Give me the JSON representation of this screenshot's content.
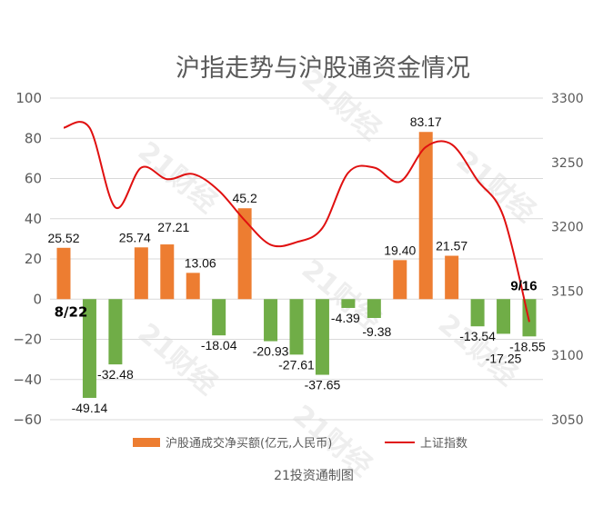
{
  "chart_data": {
    "type": "bar+line",
    "title": "沪指走势与沪股通资金情况",
    "source": "21投资通制图",
    "watermark": "21财经",
    "colors": {
      "bar_pos": "#ED7D31",
      "bar_neg": "#70AD47",
      "line": "#E01010",
      "grid": "#D9D9D9",
      "axis_text": "#595959"
    },
    "left_axis": {
      "ylim": [
        -60,
        100
      ],
      "ticks": [
        100,
        80,
        60,
        40,
        20,
        0,
        -20,
        -40,
        -60
      ]
    },
    "right_axis": {
      "ylim": [
        3050,
        3300
      ],
      "ticks": [
        3300,
        3250,
        3200,
        3150,
        3100,
        3050
      ]
    },
    "first_label": "8/22",
    "last_label": "9/16",
    "series": [
      {
        "name": "沪股通成交净买额(亿元,人民币)",
        "type": "bar",
        "axis": "left",
        "values": [
          25.52,
          -49.14,
          -32.48,
          25.74,
          27.21,
          13.06,
          -18.04,
          45.2,
          -20.93,
          -27.61,
          -37.65,
          -4.39,
          -9.38,
          19.4,
          83.17,
          21.57,
          -13.54,
          -17.25,
          -18.55
        ],
        "labels": [
          "25.52",
          "-49.14",
          "-32.48",
          "25.74",
          "27.21",
          "13.06",
          "-18.04",
          "45.2",
          "-20.93",
          "-27.61",
          "-37.65",
          "-4.39",
          "-9.38",
          "19.40",
          "83.17",
          "21.57",
          "-13.54",
          "-17.25",
          "-18.55"
        ]
      },
      {
        "name": "上证指数",
        "type": "line",
        "axis": "right",
        "values": [
          3277,
          3277,
          3215,
          3246,
          3237,
          3241,
          3228,
          3205,
          3186,
          3188,
          3199,
          3242,
          3246,
          3235,
          3262,
          3264,
          3236,
          3208,
          3126
        ]
      }
    ],
    "legend": "bottom"
  }
}
